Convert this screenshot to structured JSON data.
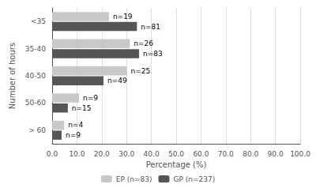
{
  "chart_data": {
    "type": "bar",
    "orientation": "horizontal",
    "categories": [
      "<35",
      "35-40",
      "40-50",
      "50-60",
      "> 60"
    ],
    "series": [
      {
        "name": "EP (n=83)",
        "color": "#c8c8c8",
        "values": [
          22.892,
          31.325,
          30.12,
          10.843,
          4.819
        ],
        "annotations": [
          "n=19",
          "n=26",
          "n=25",
          "n=9",
          "n=4"
        ]
      },
      {
        "name": "GP (n=237)",
        "color": "#555555",
        "values": [
          34.177,
          35.021,
          20.675,
          6.329,
          3.797
        ],
        "annotations": [
          "n=81",
          "n=83",
          "n=49",
          "n=15",
          "n=9"
        ]
      }
    ],
    "xlabel": "Percentage (%)",
    "ylabel": "Number of hours",
    "xlim": [
      0,
      100
    ],
    "xticks": [
      {
        "value": 0,
        "label": "0.0"
      },
      {
        "value": 10,
        "label": "10.0"
      },
      {
        "value": 20,
        "label": "20.0"
      },
      {
        "value": 30,
        "label": "30.0"
      },
      {
        "value": 40,
        "label": "40.0"
      },
      {
        "value": 50,
        "label": "50.0"
      },
      {
        "value": 60,
        "label": "60.0"
      },
      {
        "value": 70,
        "label": "70.0"
      },
      {
        "value": 80,
        "label": "80.0"
      },
      {
        "value": 90,
        "label": "90.0"
      },
      {
        "value": 100,
        "label": "100.0"
      }
    ],
    "grid": true,
    "legend": "bottom"
  }
}
